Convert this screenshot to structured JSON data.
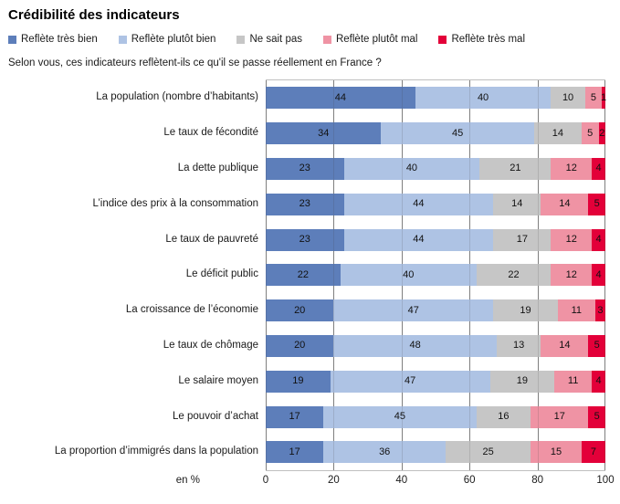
{
  "header": {
    "title": "Crédibilité des indicateurs",
    "subtitle": "Selon vous, ces indicateurs reflètent-ils ce qu'il se passe réellement en France ?"
  },
  "axis": {
    "unit_label": "en %",
    "ticks": [
      "0",
      "20",
      "40",
      "60",
      "80",
      "100"
    ]
  },
  "colors": {
    "tres_bien": "#5D7EBA",
    "plutot_bien": "#AEC3E4",
    "ne_sait_pas": "#C6C6C6",
    "plutot_mal": "#EF93A4",
    "tres_mal": "#E30039",
    "gridline": "#8C8C8C",
    "plot_border": "#BFBFBF"
  },
  "chart_data": {
    "type": "bar",
    "orientation": "horizontal",
    "stacked": true,
    "title": "Crédibilité des indicateurs",
    "subtitle": "Selon vous, ces indicateurs reflètent-ils ce qu'il se passe réellement en France ?",
    "xlabel": "en %",
    "xlim": [
      0,
      100
    ],
    "xticks": [
      0,
      20,
      40,
      60,
      80,
      100
    ],
    "grid": "vertical",
    "legend_position": "top",
    "categories": [
      "La population (nombre d’habitants)",
      "Le taux de fécondité",
      "La dette publique",
      "L’indice des prix à la consommation",
      "Le taux de pauvreté",
      "Le déficit public",
      "La croissance de l’économie",
      "Le taux de chômage",
      "Le salaire moyen",
      "Le pouvoir d’achat",
      "La proportion d’immigrés dans la population"
    ],
    "series": [
      {
        "name": "Reflète très bien",
        "color": "#5D7EBA",
        "values": [
          44,
          34,
          23,
          23,
          23,
          22,
          20,
          20,
          19,
          17,
          17
        ]
      },
      {
        "name": "Reflète plutôt bien",
        "color": "#AEC3E4",
        "values": [
          40,
          45,
          40,
          44,
          44,
          40,
          47,
          48,
          47,
          45,
          36
        ]
      },
      {
        "name": "Ne sait pas",
        "color": "#C6C6C6",
        "values": [
          10,
          14,
          21,
          14,
          17,
          22,
          19,
          13,
          19,
          16,
          25
        ]
      },
      {
        "name": "Reflète plutôt mal",
        "color": "#EF93A4",
        "values": [
          5,
          5,
          12,
          14,
          12,
          12,
          11,
          14,
          11,
          17,
          15
        ]
      },
      {
        "name": "Reflète très mal",
        "color": "#E30039",
        "values": [
          1,
          2,
          4,
          5,
          4,
          4,
          3,
          5,
          4,
          5,
          7
        ]
      }
    ]
  }
}
